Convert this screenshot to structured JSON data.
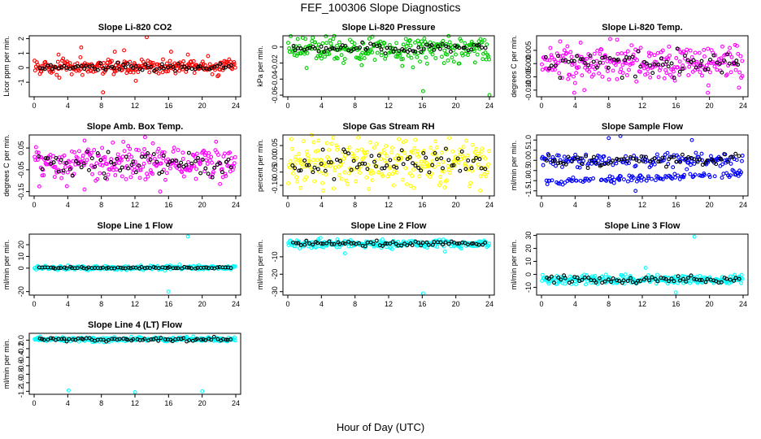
{
  "figure_title": "FEF_100306  Slope Diagnostics",
  "xlabel": "Hour of Day (UTC)",
  "colors": {
    "overlay": "#000000",
    "red": "#ff0000",
    "green": "#00cc00",
    "magenta": "#ff00ff",
    "yellow": "#ffff00",
    "blue": "#0000ff",
    "cyan": "#00ffff"
  },
  "chart_data": [
    {
      "type": "scatter",
      "title": "Slope Li-820 CO2",
      "ylabel": "Licor ppm per min.",
      "color": "red",
      "xlim": [
        0,
        24
      ],
      "ylim": [
        -2.0,
        2.2
      ],
      "xticks": [
        "0",
        "4",
        "8",
        "12",
        "16",
        "20",
        "24"
      ],
      "yticks": [
        {
          "v": -1,
          "label": "-1"
        },
        {
          "v": 0,
          "label": "0"
        },
        {
          "v": 1,
          "label": "1"
        },
        {
          "v": 2,
          "label": "2"
        }
      ],
      "base": 0.05,
      "spread": 0.35,
      "overlay_spread": 0.2,
      "outliers": [
        [
          8.2,
          -1.7
        ],
        [
          13.4,
          2.1
        ],
        [
          5.6,
          1.4
        ],
        [
          10.7,
          1.2
        ],
        [
          16.3,
          1.1
        ],
        [
          2.9,
          0.9
        ],
        [
          12.1,
          -0.9
        ],
        [
          18.3,
          0.9
        ],
        [
          20.7,
          0.8
        ],
        [
          9.6,
          1.1
        ]
      ]
    },
    {
      "type": "scatter",
      "title": "Slope Li-820 Pressure",
      "ylabel": "kPa per min.",
      "color": "green",
      "xlim": [
        0,
        24
      ],
      "ylim": [
        -0.062,
        0.014
      ],
      "xticks": [
        "0",
        "4",
        "8",
        "12",
        "16",
        "20",
        "24"
      ],
      "yticks": [
        {
          "v": -0.06,
          "label": "-0.06"
        },
        {
          "v": -0.04,
          "label": "-0.04"
        },
        {
          "v": -0.02,
          "label": "-0.02"
        },
        {
          "v": 0,
          "label": "0"
        }
      ],
      "base": -0.002,
      "spread": 0.012,
      "overlay_spread": 0.004,
      "outliers": [
        [
          16.1,
          -0.055
        ],
        [
          24.0,
          -0.06
        ],
        [
          2.1,
          0.01
        ],
        [
          7.4,
          0.009
        ]
      ]
    },
    {
      "type": "scatter",
      "title": "Slope Li-820 Temp.",
      "ylabel": "degrees C per min.",
      "color": "magenta",
      "xlim": [
        0,
        24
      ],
      "ylim": [
        -0.0125,
        0.0105
      ],
      "xticks": [
        "0",
        "4",
        "8",
        "12",
        "16",
        "20",
        "24"
      ],
      "yticks": [
        {
          "v": -0.01,
          "label": "-0.010"
        },
        {
          "v": -0.005,
          "label": "-0.005"
        },
        {
          "v": 0,
          "label": "0.000"
        },
        {
          "v": 0.005,
          "label": "0.005"
        }
      ],
      "base": 0.0,
      "spread": 0.005,
      "overlay_spread": 0.003,
      "outliers": [
        [
          9.0,
          0.009
        ],
        [
          3.9,
          -0.011
        ],
        [
          19.8,
          -0.011
        ],
        [
          5.1,
          -0.01
        ]
      ]
    },
    {
      "type": "scatter",
      "title": "Slope Amb. Box Temp.",
      "ylabel": "degrees C per min.",
      "color": "magenta",
      "xlim": [
        0,
        24
      ],
      "ylim": [
        -0.17,
        0.11
      ],
      "xticks": [
        "0",
        "4",
        "8",
        "12",
        "16",
        "20",
        "24"
      ],
      "yticks": [
        {
          "v": -0.15,
          "label": "-0.15"
        },
        {
          "v": -0.05,
          "label": "-0.05"
        },
        {
          "v": 0.05,
          "label": "0.05"
        }
      ],
      "base": -0.02,
      "spread": 0.06,
      "overlay_spread": 0.04,
      "outliers": [
        [
          13.2,
          0.1
        ],
        [
          15.0,
          -0.15
        ],
        [
          6.0,
          -0.14
        ]
      ]
    },
    {
      "type": "scatter",
      "title": "Slope Gas Stream RH",
      "ylabel": "percent per min.",
      "color": "yellow",
      "xlim": [
        0,
        24
      ],
      "ylim": [
        -0.14,
        0.09
      ],
      "xticks": [
        "0",
        "4",
        "8",
        "12",
        "16",
        "20",
        "24"
      ],
      "yticks": [
        {
          "v": -0.1,
          "label": "-0.10"
        },
        {
          "v": -0.05,
          "label": "-0.05"
        },
        {
          "v": 0,
          "label": "0.00"
        },
        {
          "v": 0.05,
          "label": "0.05"
        }
      ],
      "base": -0.01,
      "spread": 0.06,
      "overlay_spread": 0.035,
      "outliers": [
        [
          4.2,
          -0.12
        ],
        [
          15.0,
          -0.11
        ],
        [
          22.9,
          -0.12
        ]
      ]
    },
    {
      "type": "scatter",
      "title": "Slope Sample Flow",
      "ylabel": "ml/min per min.",
      "color": "blue",
      "xlim": [
        0,
        24
      ],
      "ylim": [
        -1.75,
        1.25
      ],
      "xticks": [
        "0",
        "4",
        "8",
        "12",
        "16",
        "20",
        "24"
      ],
      "yticks": [
        {
          "v": -1.5,
          "label": "-1.5"
        },
        {
          "v": -1.0,
          "label": "-1.0"
        },
        {
          "v": -0.5,
          "label": "-0.5"
        },
        {
          "v": 0,
          "label": "0.0"
        },
        {
          "v": 0.5,
          "label": "0.5"
        },
        {
          "v": 1.0,
          "label": "1.0"
        }
      ],
      "base": 0.0,
      "spread": 0.25,
      "overlay_spread": 0.2,
      "band": -1.1,
      "outliers": [
        [
          8.0,
          1.1
        ],
        [
          9.4,
          1.2
        ],
        [
          17.9,
          1.0
        ],
        [
          11.2,
          -1.5
        ]
      ]
    },
    {
      "type": "scatter",
      "title": "Slope Line 1 Flow",
      "ylabel": "ml/min per min.",
      "color": "cyan",
      "xlim": [
        0,
        24
      ],
      "ylim": [
        -23,
        29
      ],
      "xticks": [
        "0",
        "4",
        "8",
        "12",
        "16",
        "20",
        "24"
      ],
      "yticks": [
        {
          "v": -20,
          "label": "-20"
        },
        {
          "v": 0,
          "label": "0"
        },
        {
          "v": 10,
          "label": "10"
        },
        {
          "v": 20,
          "label": "20"
        }
      ],
      "base": 0.3,
      "spread": 1.2,
      "overlay_spread": 0.5,
      "outliers": [
        [
          18.3,
          27
        ],
        [
          16.0,
          -20
        ],
        [
          17.3,
          3
        ]
      ]
    },
    {
      "type": "scatter",
      "title": "Slope Line 2 Flow",
      "ylabel": "ml/min per min.",
      "color": "cyan",
      "xlim": [
        0,
        24
      ],
      "ylim": [
        -32,
        3
      ],
      "xticks": [
        "0",
        "4",
        "8",
        "12",
        "16",
        "20",
        "24"
      ],
      "yticks": [
        {
          "v": -30,
          "label": "-30"
        },
        {
          "v": -20,
          "label": "-20"
        },
        {
          "v": -10,
          "label": "-10"
        }
      ],
      "base": -2.5,
      "spread": 1.6,
      "overlay_spread": 1.0,
      "outliers": [
        [
          16.1,
          -31
        ],
        [
          6.8,
          -8
        ],
        [
          18.7,
          -7
        ]
      ]
    },
    {
      "type": "scatter",
      "title": "Slope Line 3 Flow",
      "ylabel": "ml/min per min.",
      "color": "cyan",
      "xlim": [
        0,
        24
      ],
      "ylim": [
        -16,
        31
      ],
      "xticks": [
        "0",
        "4",
        "8",
        "12",
        "16",
        "20",
        "24"
      ],
      "yticks": [
        {
          "v": -10,
          "label": "-10"
        },
        {
          "v": 0,
          "label": "0"
        },
        {
          "v": 10,
          "label": "10"
        },
        {
          "v": 20,
          "label": "20"
        },
        {
          "v": 30,
          "label": "30"
        }
      ],
      "base": -4,
      "spread": 2.5,
      "overlay_spread": 2.0,
      "outliers": [
        [
          18.2,
          29
        ],
        [
          16.0,
          -14
        ],
        [
          12.4,
          5
        ]
      ]
    },
    {
      "type": "scatter",
      "title": "Slope Line 4 (LT) Flow",
      "ylabel": "ml/min per min.",
      "color": "cyan",
      "xlim": [
        0,
        24
      ],
      "ylim": [
        -1.27,
        0.16
      ],
      "xticks": [
        "0",
        "4",
        "8",
        "12",
        "16",
        "20",
        "24"
      ],
      "yticks": [
        {
          "v": -1.2,
          "label": "-1.2"
        },
        {
          "v": -1.0,
          "label": "-1.0"
        },
        {
          "v": -0.8,
          "label": "-0.8"
        },
        {
          "v": -0.6,
          "label": "-0.6"
        },
        {
          "v": -0.4,
          "label": "-0.4"
        },
        {
          "v": -0.2,
          "label": "-0.2"
        },
        {
          "v": 0,
          "label": "0.0"
        }
      ],
      "base": 0.02,
      "spread": 0.035,
      "overlay_spread": 0.03,
      "outliers": [
        [
          4.1,
          -1.18
        ],
        [
          12.0,
          -1.22
        ],
        [
          20.0,
          -1.2
        ]
      ]
    }
  ]
}
